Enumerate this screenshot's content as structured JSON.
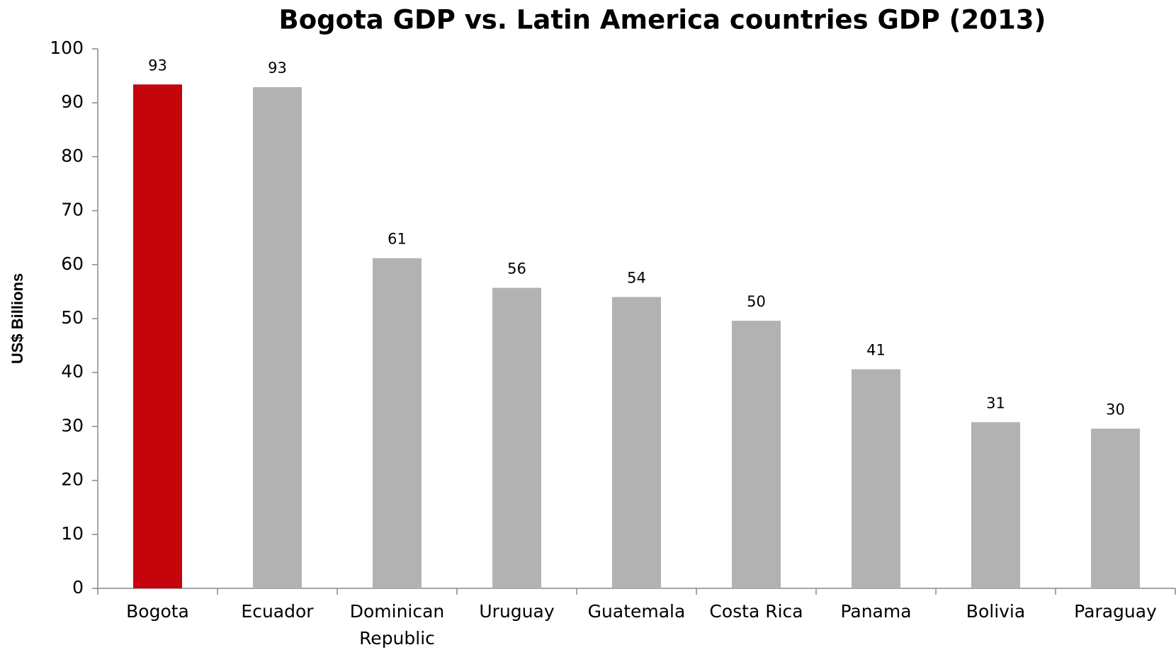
{
  "chart_data": {
    "type": "bar",
    "title": "Bogota GDP vs. Latin America countries GDP (2013)",
    "y_label": "US$ Billions",
    "categories": [
      "Bogota",
      "Ecuador",
      "Dominican Republic",
      "Uruguay",
      "Guatemala",
      "Costa Rica",
      "Panama",
      "Bolivia",
      "Paraguay"
    ],
    "values": [
      93.4,
      92.9,
      61.2,
      55.7,
      54.0,
      49.6,
      40.6,
      30.8,
      29.6
    ],
    "value_labels": [
      "93",
      "93",
      "61",
      "56",
      "54",
      "50",
      "41",
      "31",
      "30"
    ],
    "colors": [
      "#c4050c",
      "#b2b2b2",
      "#b2b2b2",
      "#b2b2b2",
      "#b2b2b2",
      "#b2b2b2",
      "#b2b2b2",
      "#b2b2b2",
      "#b2b2b2"
    ],
    "ylim": [
      0,
      100
    ],
    "yticks": [
      0,
      10,
      20,
      30,
      40,
      50,
      60,
      70,
      80,
      90,
      100
    ],
    "grid": false
  }
}
